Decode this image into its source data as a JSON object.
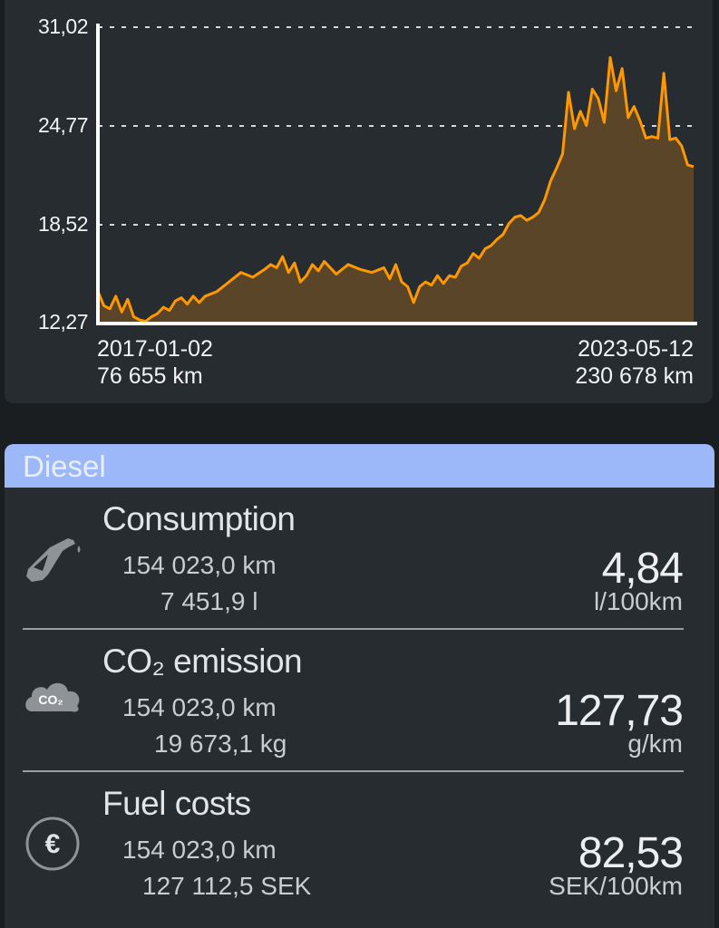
{
  "chart": {
    "y_ticks": [
      "31,02",
      "24,77",
      "18,52",
      "12,27"
    ],
    "start": {
      "date": "2017-01-02",
      "odometer": "76 655 km"
    },
    "end": {
      "date": "2023-05-12",
      "odometer": "230 678 km"
    },
    "colors": {
      "line": "#ff9800",
      "area": "#5a4528",
      "grid": "#d8d8d8",
      "axis": "#ffffff"
    }
  },
  "chart_data": {
    "type": "area",
    "xlabel": "",
    "ylabel": "",
    "ylim": [
      12.27,
      31.02
    ],
    "xlim": [
      "2017-01-02",
      "2023-05-12"
    ],
    "grid": true,
    "series": [
      {
        "values": [
          [
            0,
            14.3
          ],
          [
            0.01,
            13.4
          ],
          [
            0.02,
            13.2
          ],
          [
            0.03,
            14.0
          ],
          [
            0.04,
            13.0
          ],
          [
            0.05,
            13.8
          ],
          [
            0.06,
            12.7
          ],
          [
            0.07,
            12.5
          ],
          [
            0.08,
            12.4
          ],
          [
            0.09,
            12.7
          ],
          [
            0.1,
            12.9
          ],
          [
            0.11,
            13.3
          ],
          [
            0.12,
            13.1
          ],
          [
            0.13,
            13.7
          ],
          [
            0.14,
            13.9
          ],
          [
            0.15,
            13.5
          ],
          [
            0.16,
            14.0
          ],
          [
            0.17,
            13.6
          ],
          [
            0.18,
            14.0
          ],
          [
            0.2,
            14.3
          ],
          [
            0.22,
            14.9
          ],
          [
            0.24,
            15.5
          ],
          [
            0.26,
            15.2
          ],
          [
            0.28,
            15.7
          ],
          [
            0.29,
            16.0
          ],
          [
            0.3,
            15.8
          ],
          [
            0.31,
            16.5
          ],
          [
            0.32,
            15.5
          ],
          [
            0.33,
            16.1
          ],
          [
            0.34,
            14.9
          ],
          [
            0.35,
            15.3
          ],
          [
            0.36,
            16.0
          ],
          [
            0.37,
            15.6
          ],
          [
            0.38,
            16.2
          ],
          [
            0.4,
            15.4
          ],
          [
            0.42,
            16.0
          ],
          [
            0.44,
            15.7
          ],
          [
            0.46,
            15.5
          ],
          [
            0.48,
            15.8
          ],
          [
            0.49,
            15.1
          ],
          [
            0.5,
            16.0
          ],
          [
            0.51,
            14.9
          ],
          [
            0.52,
            14.6
          ],
          [
            0.53,
            13.6
          ],
          [
            0.54,
            14.6
          ],
          [
            0.55,
            14.9
          ],
          [
            0.56,
            14.7
          ],
          [
            0.57,
            15.3
          ],
          [
            0.58,
            14.8
          ],
          [
            0.59,
            15.3
          ],
          [
            0.6,
            15.2
          ],
          [
            0.61,
            15.9
          ],
          [
            0.62,
            16.1
          ],
          [
            0.63,
            16.7
          ],
          [
            0.64,
            16.4
          ],
          [
            0.65,
            17.0
          ],
          [
            0.66,
            17.2
          ],
          [
            0.67,
            17.6
          ],
          [
            0.68,
            17.9
          ],
          [
            0.69,
            18.6
          ],
          [
            0.7,
            19.0
          ],
          [
            0.71,
            19.1
          ],
          [
            0.72,
            18.8
          ],
          [
            0.73,
            19.0
          ],
          [
            0.74,
            19.3
          ],
          [
            0.75,
            20.1
          ],
          [
            0.76,
            21.3
          ],
          [
            0.77,
            22.1
          ],
          [
            0.78,
            23.0
          ],
          [
            0.79,
            26.9
          ],
          [
            0.8,
            24.6
          ],
          [
            0.81,
            25.7
          ],
          [
            0.82,
            24.8
          ],
          [
            0.83,
            27.1
          ],
          [
            0.84,
            26.5
          ],
          [
            0.85,
            25.0
          ],
          [
            0.86,
            29.1
          ],
          [
            0.87,
            27.0
          ],
          [
            0.88,
            28.4
          ],
          [
            0.89,
            25.3
          ],
          [
            0.9,
            26.0
          ],
          [
            0.91,
            25.1
          ],
          [
            0.92,
            24.0
          ],
          [
            0.93,
            24.1
          ],
          [
            0.94,
            24.0
          ],
          [
            0.95,
            28.1
          ],
          [
            0.96,
            23.9
          ],
          [
            0.97,
            24.0
          ],
          [
            0.98,
            23.5
          ],
          [
            0.99,
            22.3
          ],
          [
            1.0,
            22.2
          ]
        ]
      }
    ]
  },
  "fuel_type": "Diesel",
  "stats": [
    {
      "title": "Consumption",
      "distance": "154 023,0 km",
      "amount": "7 451,9 l",
      "value": "4,84",
      "unit": "l/100km",
      "icon": "fuel-pump-icon"
    },
    {
      "title": "CO₂ emission",
      "distance": "154 023,0 km",
      "amount": "19 673,1 kg",
      "value": "127,73",
      "unit": "g/km",
      "icon": "co2-cloud-icon",
      "icon_text": "CO₂"
    },
    {
      "title": "Fuel costs",
      "distance": "154 023,0 km",
      "amount": "127 112,5 SEK",
      "value": "82,53",
      "unit": "SEK/100km",
      "icon": "euro-icon"
    }
  ]
}
